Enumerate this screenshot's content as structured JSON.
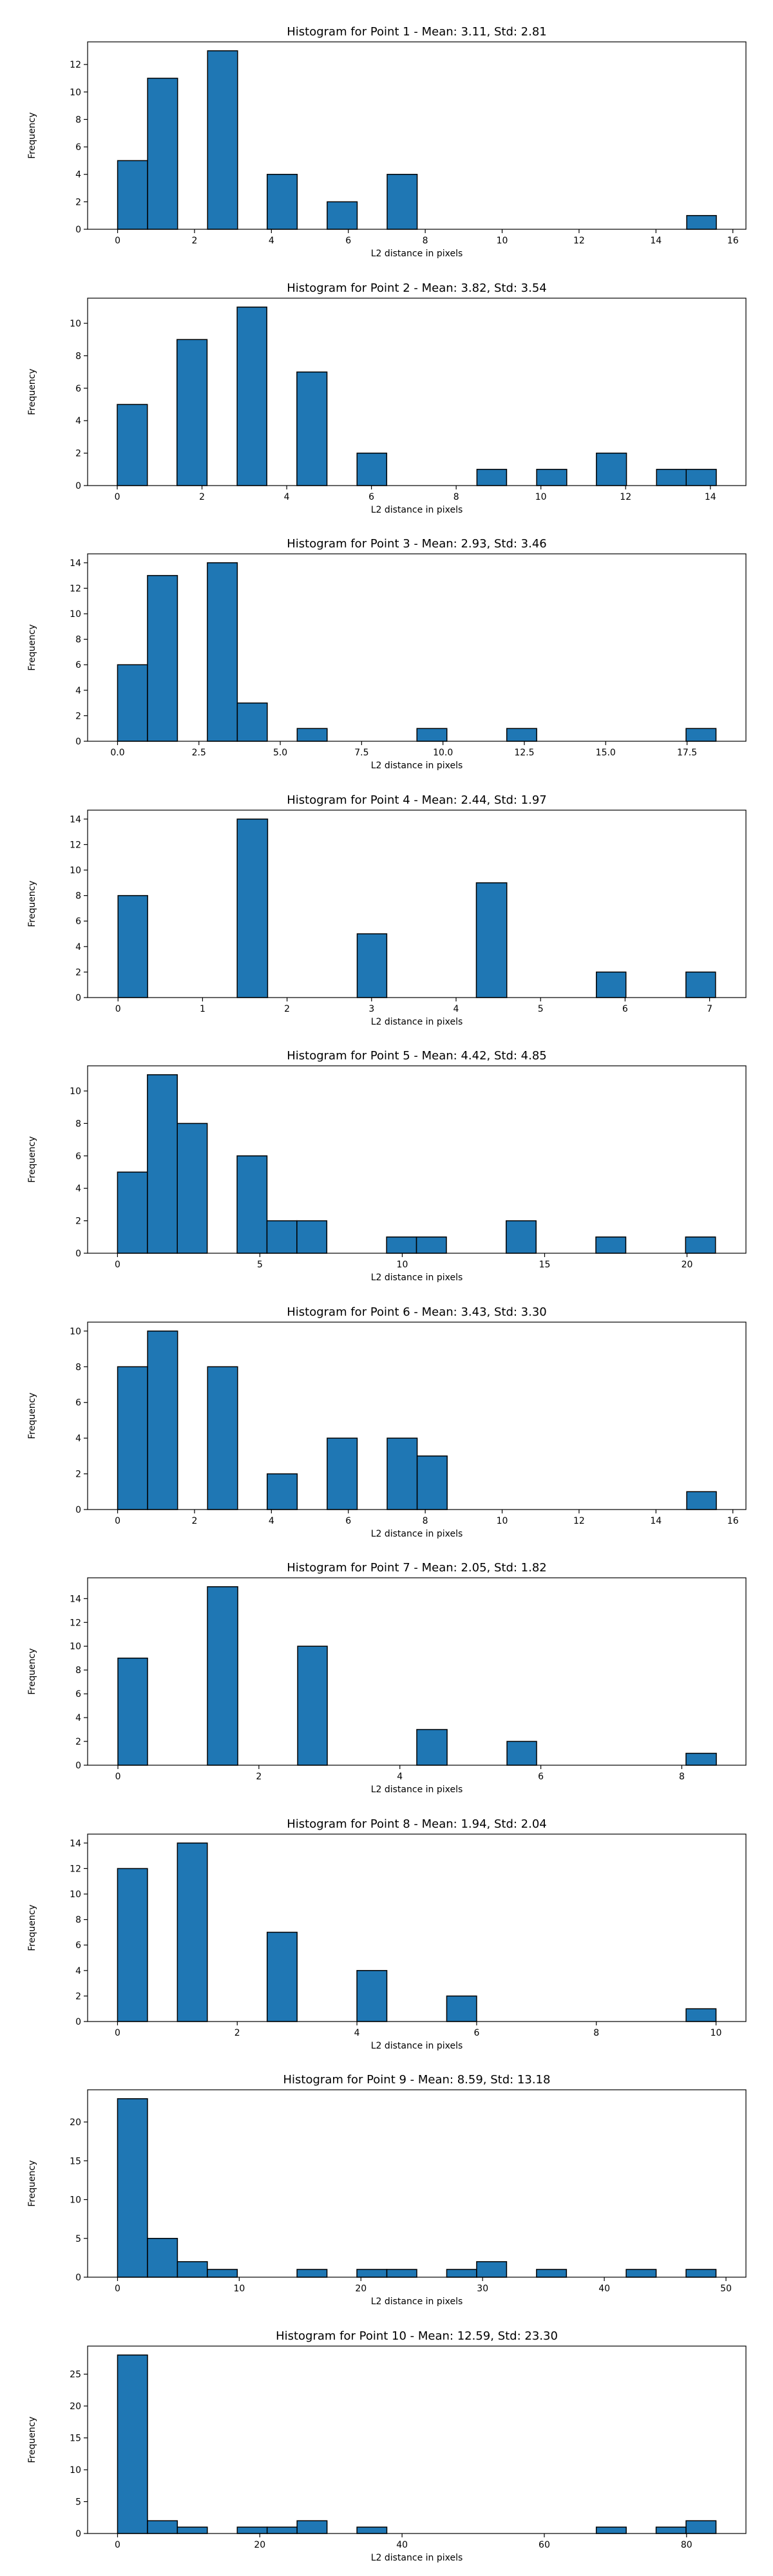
{
  "chart_data": [
    {
      "type": "bar",
      "title": "Histogram for Point 1 - Mean: 3.11, Std: 2.81",
      "xlabel": "L2 distance in pixels",
      "ylabel": "Frequency",
      "xlim": [
        -0.78,
        16.34
      ],
      "ylim": [
        0,
        13.65
      ],
      "xticks": [
        0,
        2,
        4,
        6,
        8,
        10,
        12,
        14,
        16
      ],
      "yticks": [
        0,
        2,
        4,
        6,
        8,
        10,
        12
      ],
      "bins": [
        [
          0,
          0.78,
          5
        ],
        [
          0.78,
          1.56,
          11
        ],
        [
          2.34,
          3.12,
          13
        ],
        [
          3.89,
          4.67,
          4
        ],
        [
          5.45,
          6.23,
          2
        ],
        [
          7.01,
          7.79,
          4
        ],
        [
          14.8,
          15.57,
          1
        ]
      ]
    },
    {
      "type": "bar",
      "title": "Histogram for Point 2 - Mean: 3.82, Std: 3.54",
      "xlabel": "L2 distance in pixels",
      "ylabel": "Frequency",
      "xlim": [
        -0.7,
        14.84
      ],
      "ylim": [
        0,
        11.55
      ],
      "xticks": [
        0,
        2,
        4,
        6,
        8,
        10,
        12,
        14
      ],
      "yticks": [
        0,
        2,
        4,
        6,
        8,
        10
      ],
      "bins": [
        [
          0,
          0.71,
          5
        ],
        [
          1.41,
          2.12,
          9
        ],
        [
          2.83,
          3.53,
          11
        ],
        [
          4.24,
          4.95,
          7
        ],
        [
          5.66,
          6.36,
          2
        ],
        [
          8.49,
          9.19,
          1
        ],
        [
          9.9,
          10.61,
          1
        ],
        [
          11.31,
          12.02,
          2
        ],
        [
          12.73,
          13.43,
          1
        ],
        [
          13.43,
          14.14,
          1
        ]
      ]
    },
    {
      "type": "bar",
      "title": "Histogram for Point 3 - Mean: 2.93, Std: 3.46",
      "xlabel": "L2 distance in pixels",
      "ylabel": "Frequency",
      "xlim": [
        -0.92,
        19.31
      ],
      "ylim": [
        0,
        14.7
      ],
      "xticks": [
        0.0,
        2.5,
        5.0,
        7.5,
        10.0,
        12.5,
        15.0,
        17.5
      ],
      "xtick_labels": [
        "0.0",
        "2.5",
        "5.0",
        "7.5",
        "10.0",
        "12.5",
        "15.0",
        "17.5"
      ],
      "yticks": [
        0,
        2,
        4,
        6,
        8,
        10,
        12,
        14
      ],
      "bins": [
        [
          0,
          0.92,
          6
        ],
        [
          0.92,
          1.84,
          13
        ],
        [
          2.76,
          3.68,
          14
        ],
        [
          3.68,
          4.6,
          3
        ],
        [
          5.52,
          6.44,
          1
        ],
        [
          9.2,
          10.12,
          1
        ],
        [
          11.96,
          12.88,
          1
        ],
        [
          17.47,
          18.39,
          1
        ]
      ]
    },
    {
      "type": "bar",
      "title": "Histogram for Point 4 - Mean: 2.44, Std: 1.97",
      "xlabel": "L2 distance in pixels",
      "ylabel": "Frequency",
      "xlim": [
        -0.36,
        7.43
      ],
      "ylim": [
        0,
        14.7
      ],
      "xticks": [
        0,
        1,
        2,
        3,
        4,
        5,
        6,
        7
      ],
      "yticks": [
        0,
        2,
        4,
        6,
        8,
        10,
        12,
        14
      ],
      "bins": [
        [
          0,
          0.35,
          8
        ],
        [
          1.41,
          1.77,
          14
        ],
        [
          2.83,
          3.18,
          5
        ],
        [
          4.24,
          4.6,
          9
        ],
        [
          5.66,
          6.01,
          2
        ],
        [
          6.72,
          7.07,
          2
        ]
      ]
    },
    {
      "type": "bar",
      "title": "Histogram for Point 5 - Mean: 4.42, Std: 4.85",
      "xlabel": "L2 distance in pixels",
      "ylabel": "Frequency",
      "xlim": [
        -1.05,
        22.07
      ],
      "ylim": [
        0,
        11.55
      ],
      "xticks": [
        0,
        5,
        10,
        15,
        20
      ],
      "yticks": [
        0,
        2,
        4,
        6,
        8,
        10
      ],
      "bins": [
        [
          0,
          1.05,
          5
        ],
        [
          1.05,
          2.1,
          11
        ],
        [
          2.1,
          3.15,
          8
        ],
        [
          4.2,
          5.25,
          6
        ],
        [
          5.25,
          6.3,
          2
        ],
        [
          6.3,
          7.35,
          2
        ],
        [
          9.45,
          10.5,
          1
        ],
        [
          10.5,
          11.55,
          1
        ],
        [
          13.65,
          14.7,
          2
        ],
        [
          16.8,
          17.85,
          1
        ],
        [
          19.95,
          21.0,
          1
        ]
      ]
    },
    {
      "type": "bar",
      "title": "Histogram for Point 6 - Mean: 3.43, Std: 3.30",
      "xlabel": "L2 distance in pixels",
      "ylabel": "Frequency",
      "xlim": [
        -0.78,
        16.34
      ],
      "ylim": [
        0,
        10.5
      ],
      "xticks": [
        0,
        2,
        4,
        6,
        8,
        10,
        12,
        14,
        16
      ],
      "yticks": [
        0,
        2,
        4,
        6,
        8,
        10
      ],
      "bins": [
        [
          0,
          0.78,
          8
        ],
        [
          0.78,
          1.56,
          10
        ],
        [
          2.34,
          3.12,
          8
        ],
        [
          3.89,
          4.67,
          2
        ],
        [
          5.45,
          6.23,
          4
        ],
        [
          7.01,
          7.79,
          4
        ],
        [
          7.79,
          8.57,
          3
        ],
        [
          14.8,
          15.57,
          1
        ]
      ]
    },
    {
      "type": "bar",
      "title": "Histogram for Point 7 - Mean: 2.05, Std: 1.82",
      "xlabel": "L2 distance in pixels",
      "ylabel": "Frequency",
      "xlim": [
        -0.43,
        8.91
      ],
      "ylim": [
        0,
        15.75
      ],
      "xticks": [
        0,
        2,
        4,
        6,
        8
      ],
      "yticks": [
        0,
        2,
        4,
        6,
        8,
        10,
        12,
        14
      ],
      "bins": [
        [
          0,
          0.42,
          9
        ],
        [
          1.27,
          1.7,
          15
        ],
        [
          2.55,
          2.97,
          10
        ],
        [
          4.24,
          4.67,
          3
        ],
        [
          5.52,
          5.94,
          2
        ],
        [
          8.06,
          8.49,
          1
        ]
      ]
    },
    {
      "type": "bar",
      "title": "Histogram for Point 8 - Mean: 1.94, Std: 2.04",
      "xlabel": "L2 distance in pixels",
      "ylabel": "Frequency",
      "xlim": [
        -0.5,
        10.5
      ],
      "ylim": [
        0,
        14.7
      ],
      "xticks": [
        0,
        2,
        4,
        6,
        8,
        10
      ],
      "yticks": [
        0,
        2,
        4,
        6,
        8,
        10,
        12,
        14
      ],
      "bins": [
        [
          0,
          0.5,
          12
        ],
        [
          1.0,
          1.5,
          14
        ],
        [
          2.5,
          3.0,
          7
        ],
        [
          4.0,
          4.5,
          4
        ],
        [
          5.5,
          6.0,
          2
        ],
        [
          9.5,
          10.0,
          1
        ]
      ]
    },
    {
      "type": "bar",
      "title": "Histogram for Point 9 - Mean: 8.59, Std: 13.18",
      "xlabel": "L2 distance in pixels",
      "ylabel": "Frequency",
      "xlim": [
        -2.46,
        51.64
      ],
      "ylim": [
        0,
        24.15
      ],
      "xticks": [
        0,
        10,
        20,
        30,
        40,
        50
      ],
      "yticks": [
        0,
        5,
        10,
        15,
        20
      ],
      "bins": [
        [
          0,
          2.46,
          23
        ],
        [
          2.46,
          4.92,
          5
        ],
        [
          4.92,
          7.38,
          2
        ],
        [
          7.38,
          9.84,
          1
        ],
        [
          14.75,
          17.21,
          1
        ],
        [
          19.67,
          22.13,
          1
        ],
        [
          22.13,
          24.59,
          1
        ],
        [
          27.05,
          29.51,
          1
        ],
        [
          29.51,
          31.97,
          2
        ],
        [
          34.43,
          36.89,
          1
        ],
        [
          41.8,
          44.26,
          1
        ],
        [
          46.72,
          49.18,
          1
        ]
      ]
    },
    {
      "type": "bar",
      "title": "Histogram for Point 10 - Mean: 12.59, Std: 23.30",
      "xlabel": "L2 distance in pixels",
      "ylabel": "Frequency",
      "xlim": [
        -4.21,
        88.35
      ],
      "ylim": [
        0,
        29.4
      ],
      "xticks": [
        0,
        20,
        40,
        60,
        80
      ],
      "yticks": [
        0,
        5,
        10,
        15,
        20,
        25
      ],
      "bins": [
        [
          0,
          4.21,
          28
        ],
        [
          4.21,
          8.41,
          2
        ],
        [
          8.41,
          12.62,
          1
        ],
        [
          16.83,
          21.03,
          1
        ],
        [
          21.03,
          25.24,
          1
        ],
        [
          25.24,
          29.45,
          2
        ],
        [
          33.66,
          37.86,
          1
        ],
        [
          67.31,
          71.52,
          1
        ],
        [
          75.72,
          79.93,
          1
        ],
        [
          79.93,
          84.14,
          2
        ]
      ]
    }
  ]
}
